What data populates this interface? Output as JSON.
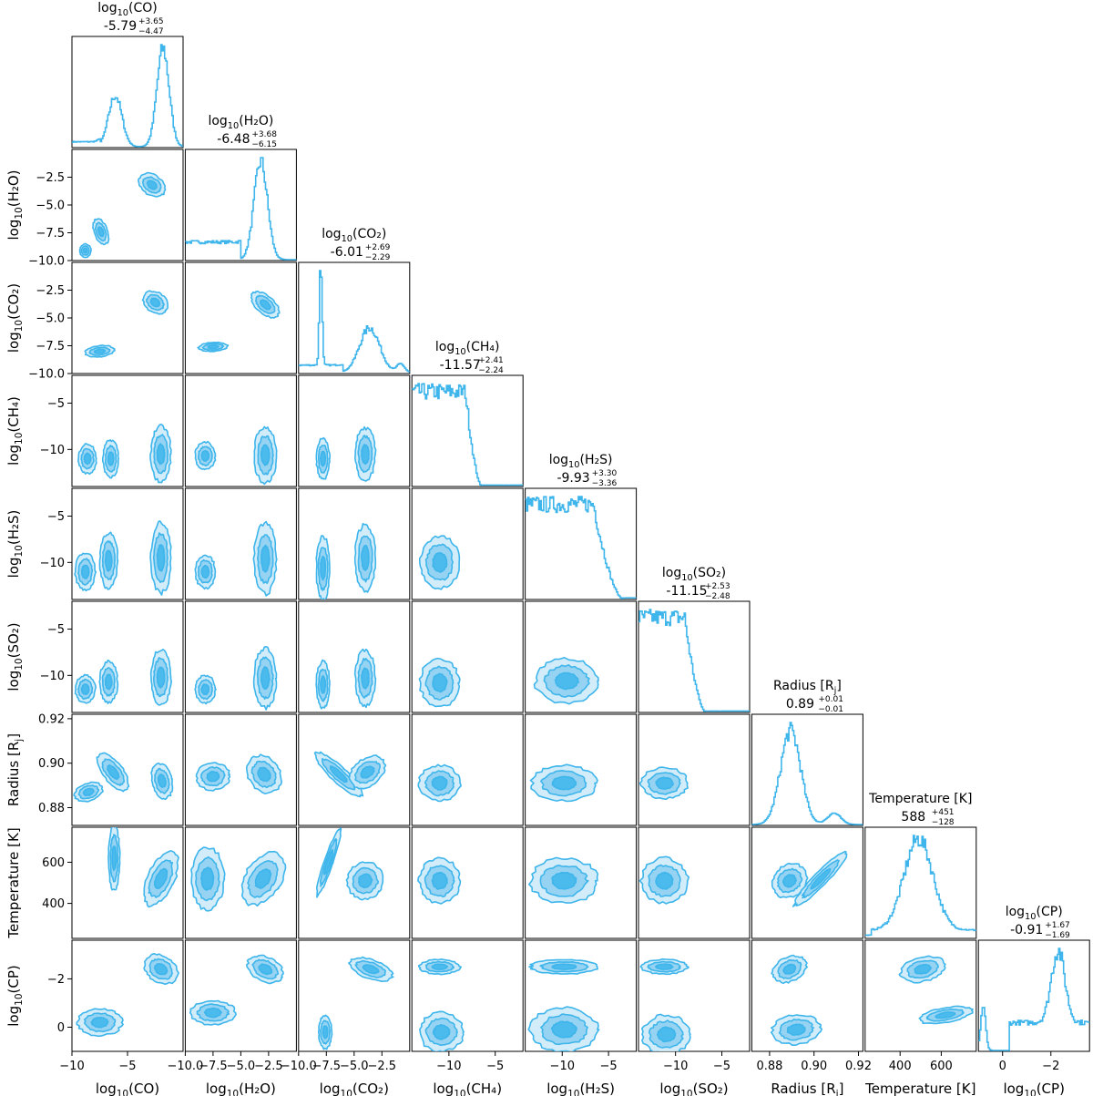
{
  "chart_data": {
    "type": "corner",
    "color": "#3eb5eb",
    "color_fill_light": "#cdeaf8",
    "color_fill_mid": "#8fd0f1",
    "parameters": [
      {
        "key": "co",
        "base": "log",
        "sub": "10",
        "tail": "(CO)",
        "axis_label": "log10(CO)",
        "median": "-5.79",
        "plus": "+3.65",
        "minus": "−4.47",
        "range": [
          -10,
          0
        ],
        "ticks": [
          -10,
          -5
        ],
        "tick_labels": [
          "−10",
          "−5"
        ]
      },
      {
        "key": "h2o",
        "base": "log",
        "sub": "10",
        "tail": "(H₂O)",
        "axis_label": "log10(H2O)",
        "median": "-6.48",
        "plus": "+3.68",
        "minus": "−6.15",
        "range": [
          -10,
          0
        ],
        "ticks": [
          -10,
          -7.5,
          -5,
          -2.5
        ],
        "tick_labels": [
          "−10.0",
          "−7.5",
          "−5.0",
          "−2.5"
        ]
      },
      {
        "key": "co2",
        "base": "log",
        "sub": "10",
        "tail": "(CO₂)",
        "axis_label": "log10(CO2)",
        "median": "-6.01",
        "plus": "+2.69",
        "minus": "−2.29",
        "range": [
          -10,
          0
        ],
        "ticks": [
          -10,
          -7.5,
          -5,
          -2.5
        ],
        "tick_labels": [
          "−10.0",
          "−7.5",
          "−5.0",
          "−2.5"
        ]
      },
      {
        "key": "ch4",
        "base": "log",
        "sub": "10",
        "tail": "(CH₄)",
        "axis_label": "log10(CH4)",
        "median": "-11.57",
        "plus": "+2.41",
        "minus": "−2.24",
        "range": [
          -14,
          -2
        ],
        "ticks": [
          -10,
          -5
        ],
        "tick_labels": [
          "−10",
          "−5"
        ]
      },
      {
        "key": "h2s",
        "base": "log",
        "sub": "10",
        "tail": "(H₂S)",
        "axis_label": "log10(H2S)",
        "median": "-9.93",
        "plus": "+3.30",
        "minus": "−3.36",
        "range": [
          -14,
          -2
        ],
        "ticks": [
          -10,
          -5
        ],
        "tick_labels": [
          "−10",
          "−5"
        ]
      },
      {
        "key": "so2",
        "base": "log",
        "sub": "10",
        "tail": "(SO₂)",
        "axis_label": "log10(SO2)",
        "median": "-11.15",
        "plus": "+2.53",
        "minus": "−2.48",
        "range": [
          -14,
          -2
        ],
        "ticks": [
          -10,
          -5
        ],
        "tick_labels": [
          "−10",
          "−5"
        ]
      },
      {
        "key": "radius",
        "base": "Radius [R",
        "sub": "j",
        "tail": "]",
        "axis_label": "Radius [Rj]",
        "median": "0.89",
        "plus": "+0.01",
        "minus": "−0.01",
        "range": [
          0.872,
          0.922
        ],
        "ticks": [
          0.88,
          0.9,
          0.92
        ],
        "tick_labels": [
          "0.88",
          "0.90",
          "0.92"
        ]
      },
      {
        "key": "temp",
        "base": "Temperature [K]",
        "sub": "",
        "tail": "",
        "axis_label": "Temperature [K]",
        "median": "588",
        "plus": "+451",
        "minus": "−128",
        "range": [
          230,
          770
        ],
        "ticks": [
          400,
          600
        ],
        "tick_labels": [
          "400",
          "600"
        ]
      },
      {
        "key": "cp",
        "base": "log",
        "sub": "10",
        "tail": "(CP)",
        "axis_label": "log10(CP)",
        "median": "-0.91",
        "plus": "+1.67",
        "minus": "−1.69",
        "range": [
          1.0,
          -3.6
        ],
        "ticks": [
          0,
          -2
        ],
        "tick_labels": [
          "0",
          "−2"
        ]
      }
    ],
    "marginals": {
      "co": {
        "peaks": [
          [
            -6.1,
            0.6,
            0.52
          ],
          [
            -1.8,
            0.55,
            1.0
          ]
        ],
        "floor": 0.05,
        "floor_to": -7.5
      },
      "h2o": {
        "peaks": [
          [
            -3.2,
            0.6,
            0.78
          ]
        ],
        "floor": 0.14,
        "floor_to": -5.0
      },
      "co2": {
        "peaks": [
          [
            -8.0,
            0.12,
            1.0
          ],
          [
            -3.6,
            0.9,
            0.42
          ],
          [
            -0.8,
            0.35,
            0.08
          ]
        ],
        "floor": 0.07,
        "floor_to": -6.0
      },
      "ch4": {
        "plateau": [
          -13.5,
          -8.2
        ],
        "level": 0.72,
        "decay_to": -6.5
      },
      "h2s": {
        "plateau": [
          -14.0,
          -6.6
        ],
        "level": 0.55,
        "decay_to": -3.5
      },
      "so2": {
        "plateau": [
          -14.0,
          -9.0
        ],
        "level": 0.72,
        "decay_to": -6.8
      },
      "radius": {
        "peaks": [
          [
            0.8895,
            0.0045,
            1.0
          ],
          [
            0.909,
            0.003,
            0.12
          ]
        ],
        "floor": 0.0,
        "floor_to": 0.872
      },
      "temp": {
        "peaks": [
          [
            490,
            70,
            0.62
          ]
        ],
        "floor": 0.05,
        "floor_to": 770
      },
      "cp": {
        "peaks": [
          [
            -2.3,
            0.28,
            0.52
          ],
          [
            0.8,
            0.1,
            0.32
          ]
        ],
        "floor": 0.2,
        "floor_to": -0.3
      }
    },
    "blobs": [
      {
        "x": "co",
        "y": "h2o",
        "parts": [
          [
            -2.8,
            -3.2,
            1.3,
            0.9,
            -0.6
          ],
          [
            -7.4,
            -7.4,
            0.6,
            1.2,
            0.3
          ],
          [
            -8.8,
            -9.1,
            0.5,
            0.6,
            0
          ]
        ]
      },
      {
        "x": "h2o",
        "y": "co2",
        "parts": [
          [
            -2.8,
            -3.8,
            1.5,
            0.8,
            -0.65
          ],
          [
            -7.5,
            -7.6,
            1.3,
            0.4,
            0.05
          ]
        ]
      },
      {
        "x": "co",
        "y": "co2",
        "parts": [
          [
            -2.5,
            -3.6,
            1.2,
            0.9,
            -0.6
          ],
          [
            -7.5,
            -8.0,
            1.3,
            0.5,
            0.1
          ]
        ]
      },
      {
        "x": "co",
        "y": "ch4",
        "parts": [
          [
            -2.0,
            -10.5,
            0.9,
            3.0,
            0
          ],
          [
            -6.5,
            -11.0,
            0.7,
            2.0,
            0
          ],
          [
            -8.6,
            -11.0,
            0.8,
            1.6,
            0
          ]
        ]
      },
      {
        "x": "h2o",
        "y": "ch4",
        "parts": [
          [
            -2.8,
            -10.6,
            1.0,
            3.0,
            0
          ],
          [
            -8.2,
            -10.7,
            0.9,
            1.5,
            0
          ]
        ]
      },
      {
        "x": "co2",
        "y": "ch4",
        "parts": [
          [
            -4.0,
            -10.5,
            0.9,
            2.8,
            0
          ],
          [
            -7.8,
            -11.0,
            0.6,
            2.2,
            0
          ]
        ]
      },
      {
        "x": "ch4",
        "y": "h2s",
        "parts": [
          [
            -11.0,
            -10.0,
            2.1,
            2.8,
            0
          ]
        ]
      },
      {
        "x": "co",
        "y": "h2s",
        "parts": [
          [
            -2.0,
            -9.5,
            0.9,
            3.8,
            0
          ],
          [
            -6.7,
            -9.8,
            0.8,
            3.0,
            0
          ],
          [
            -8.8,
            -11.0,
            0.9,
            2.0,
            0
          ]
        ]
      },
      {
        "x": "h2o",
        "y": "h2s",
        "parts": [
          [
            -2.8,
            -9.6,
            1.0,
            3.8,
            0
          ],
          [
            -8.2,
            -11.0,
            0.9,
            1.8,
            0
          ]
        ]
      },
      {
        "x": "co2",
        "y": "h2s",
        "parts": [
          [
            -4.0,
            -9.5,
            0.9,
            3.6,
            0
          ],
          [
            -7.8,
            -10.6,
            0.6,
            3.4,
            0
          ]
        ]
      },
      {
        "x": "h2s",
        "y": "so2",
        "parts": [
          [
            -9.5,
            -10.6,
            3.4,
            2.4,
            0
          ]
        ]
      },
      {
        "x": "ch4",
        "y": "so2",
        "parts": [
          [
            -11.0,
            -10.8,
            2.1,
            2.6,
            0
          ]
        ]
      },
      {
        "x": "co",
        "y": "so2",
        "parts": [
          [
            -2.0,
            -10.2,
            0.9,
            3.0,
            0
          ],
          [
            -6.7,
            -10.7,
            0.8,
            2.2,
            0
          ],
          [
            -8.8,
            -11.5,
            0.9,
            1.5,
            0
          ]
        ]
      },
      {
        "x": "h2o",
        "y": "so2",
        "parts": [
          [
            -2.8,
            -10.3,
            1.0,
            3.2,
            0
          ],
          [
            -8.2,
            -11.5,
            0.9,
            1.5,
            0
          ]
        ]
      },
      {
        "x": "co2",
        "y": "so2",
        "parts": [
          [
            -4.0,
            -10.3,
            0.9,
            3.0,
            0
          ],
          [
            -7.8,
            -11.0,
            0.6,
            2.5,
            0
          ]
        ]
      },
      {
        "x": "co",
        "y": "radius",
        "parts": [
          [
            -1.9,
            0.892,
            0.9,
            0.008,
            0.2
          ],
          [
            -6.3,
            0.896,
            0.9,
            0.01,
            0.6
          ],
          [
            -8.5,
            0.887,
            1.3,
            0.004,
            0.3
          ]
        ]
      },
      {
        "x": "h2o",
        "y": "radius",
        "parts": [
          [
            -2.9,
            0.895,
            1.4,
            0.009,
            0.55
          ],
          [
            -7.5,
            0.894,
            1.5,
            0.006,
            0.1
          ]
        ]
      },
      {
        "x": "co2",
        "y": "radius",
        "parts": [
          [
            -6.4,
            0.895,
            0.7,
            0.014,
            0.75
          ],
          [
            -3.8,
            0.896,
            1.8,
            0.006,
            0.6
          ]
        ]
      },
      {
        "x": "ch4",
        "y": "radius",
        "parts": [
          [
            -11.0,
            0.891,
            2.2,
            0.008,
            0
          ]
        ]
      },
      {
        "x": "h2s",
        "y": "radius",
        "parts": [
          [
            -9.8,
            0.891,
            3.5,
            0.008,
            0
          ]
        ]
      },
      {
        "x": "so2",
        "y": "radius",
        "parts": [
          [
            -11.2,
            0.891,
            2.5,
            0.007,
            0
          ]
        ]
      },
      {
        "x": "co",
        "y": "temp",
        "parts": [
          [
            -2.0,
            520,
            1.2,
            140,
            -0.4
          ],
          [
            -6.2,
            620,
            0.5,
            160,
            0
          ]
        ]
      },
      {
        "x": "h2o",
        "y": "temp",
        "parts": [
          [
            -3.0,
            520,
            1.6,
            140,
            -0.5
          ],
          [
            -8.0,
            520,
            1.5,
            150,
            0
          ]
        ]
      },
      {
        "x": "co2",
        "y": "temp",
        "parts": [
          [
            -4.0,
            510,
            1.6,
            90,
            -0.6
          ],
          [
            -7.3,
            600,
            0.4,
            170,
            -0.3
          ]
        ]
      },
      {
        "x": "ch4",
        "y": "temp",
        "parts": [
          [
            -11.0,
            510,
            2.2,
            110,
            0
          ]
        ]
      },
      {
        "x": "h2s",
        "y": "temp",
        "parts": [
          [
            -9.8,
            510,
            3.6,
            110,
            0
          ]
        ]
      },
      {
        "x": "so2",
        "y": "temp",
        "parts": [
          [
            -11.2,
            510,
            2.5,
            110,
            0
          ]
        ]
      },
      {
        "x": "radius",
        "y": "temp",
        "parts": [
          [
            0.889,
            510,
            0.007,
            90,
            -0.75
          ],
          [
            0.903,
            520,
            0.003,
            180,
            -0.7
          ]
        ]
      },
      {
        "x": "co",
        "y": "cp",
        "parts": [
          [
            -2.0,
            -2.4,
            1.6,
            0.55,
            -0.5
          ],
          [
            -7.5,
            -0.2,
            2.0,
            0.55,
            0
          ]
        ]
      },
      {
        "x": "h2o",
        "y": "cp",
        "parts": [
          [
            -2.8,
            -2.4,
            1.7,
            0.5,
            -0.4
          ],
          [
            -7.5,
            -0.6,
            2.0,
            0.5,
            0
          ]
        ]
      },
      {
        "x": "co2",
        "y": "cp",
        "parts": [
          [
            -3.5,
            -2.4,
            2.0,
            0.4,
            -0.3
          ],
          [
            -7.6,
            0.2,
            0.6,
            0.7,
            0
          ]
        ]
      },
      {
        "x": "ch4",
        "y": "cp",
        "parts": [
          [
            -11.0,
            -2.5,
            2.2,
            0.3,
            0
          ],
          [
            -10.8,
            0.2,
            2.4,
            0.8,
            0
          ]
        ]
      },
      {
        "x": "h2s",
        "y": "cp",
        "parts": [
          [
            -9.8,
            -2.5,
            3.6,
            0.3,
            0
          ],
          [
            -9.8,
            0.1,
            3.6,
            0.9,
            0
          ]
        ]
      },
      {
        "x": "so2",
        "y": "cp",
        "parts": [
          [
            -11.2,
            -2.5,
            2.5,
            0.3,
            0
          ],
          [
            -11.0,
            0.3,
            2.6,
            0.8,
            0
          ]
        ]
      },
      {
        "x": "radius",
        "y": "cp",
        "parts": [
          [
            0.889,
            -2.4,
            0.008,
            0.5,
            0.4
          ],
          [
            0.892,
            0.1,
            0.011,
            0.6,
            0.1
          ]
        ]
      },
      {
        "x": "temp",
        "y": "cp",
        "parts": [
          [
            510,
            -2.4,
            110,
            0.5,
            0.2
          ],
          [
            620,
            -0.5,
            130,
            0.3,
            0.15
          ]
        ]
      }
    ]
  }
}
